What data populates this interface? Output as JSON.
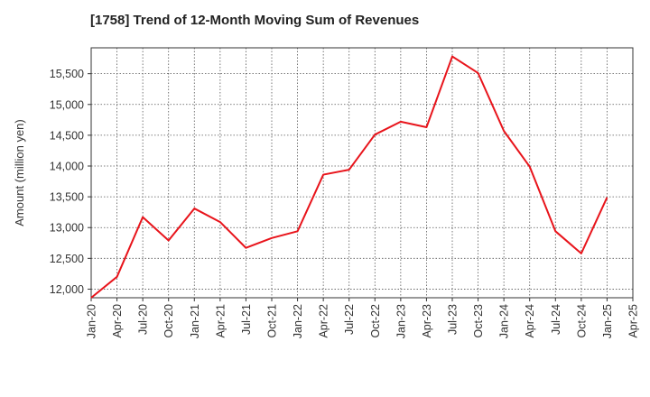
{
  "chart_data": {
    "type": "line",
    "title": "[1758]  Trend of 12-Month Moving Sum of Revenues",
    "xlabel": "",
    "ylabel": "Amount (million yen)",
    "x_ticks": [
      "Jan-20",
      "Apr-20",
      "Jul-20",
      "Oct-20",
      "Jan-21",
      "Apr-21",
      "Jul-21",
      "Oct-21",
      "Jan-22",
      "Apr-22",
      "Jul-22",
      "Oct-22",
      "Jan-23",
      "Apr-23",
      "Jul-23",
      "Oct-23",
      "Jan-24",
      "Apr-24",
      "Jul-24",
      "Oct-24",
      "Jan-25",
      "Apr-25"
    ],
    "y_ticks": [
      "12,000",
      "12,500",
      "13,000",
      "13,500",
      "14,000",
      "14,500",
      "15,000",
      "15,500"
    ],
    "y_tick_values": [
      12000,
      12500,
      13000,
      13500,
      14000,
      14500,
      15000,
      15500
    ],
    "ylim": [
      11860,
      15920
    ],
    "grid": true,
    "series_color": "#e8141b",
    "series": [
      {
        "x": [
          "Jan-20",
          "Apr-20",
          "Jul-20",
          "Oct-20",
          "Jan-21",
          "Apr-21",
          "Jul-21",
          "Oct-21",
          "Jan-22",
          "Apr-22",
          "Jul-22",
          "Oct-22",
          "Jan-23",
          "Apr-23",
          "Jul-23",
          "Oct-23",
          "Jan-24",
          "Apr-24",
          "Jul-24",
          "Oct-24",
          "Jan-25"
        ],
        "values": [
          11860,
          12200,
          13170,
          12790,
          13310,
          13090,
          12670,
          12830,
          12940,
          13860,
          13940,
          14510,
          14720,
          14630,
          15780,
          15510,
          14570,
          13990,
          12940,
          12580,
          13490
        ]
      }
    ]
  }
}
